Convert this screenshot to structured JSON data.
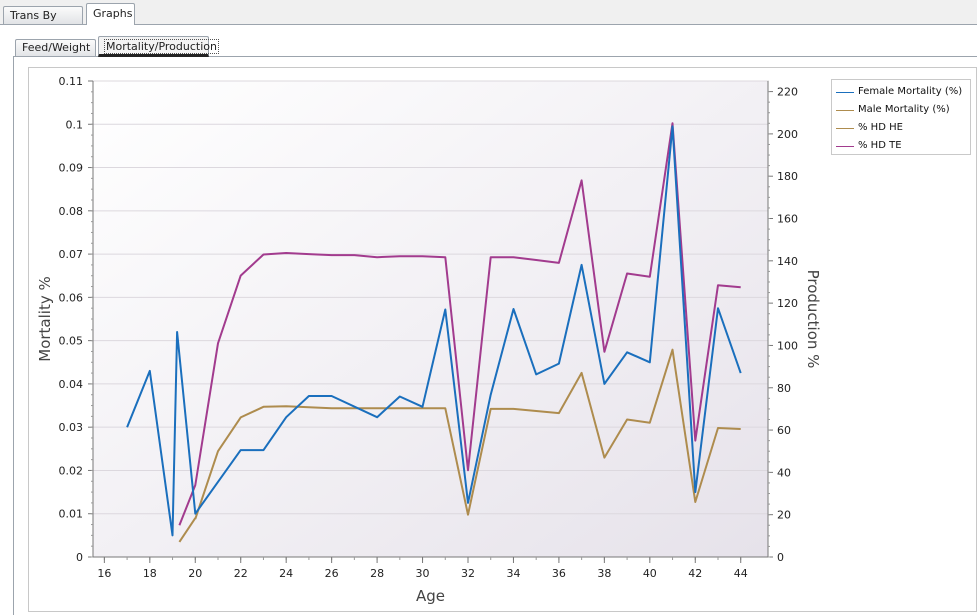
{
  "tabs": [
    {
      "label": "Trans By Age",
      "active": false
    },
    {
      "label": "Graphs",
      "active": true
    }
  ],
  "subtabs": [
    {
      "label": "Feed/Weight",
      "active": false
    },
    {
      "label": "Mortality/Production",
      "active": true
    }
  ],
  "colors": {
    "female_mortality": "#1a6fbd",
    "male_mortality": "#ae8c4e",
    "hd_he": "#ae8c4e",
    "hd_te": "#a23b8e",
    "plot_bg_start": "#ffffff",
    "plot_bg_end": "#e6e2ea"
  },
  "chart_data": {
    "type": "line",
    "xlabel": "Age",
    "ylabel": "Mortality %",
    "y2label": "Production %",
    "xlim": [
      15.5,
      45.2
    ],
    "ylim": [
      0,
      0.11
    ],
    "y2lim": [
      0,
      225
    ],
    "x_ticks": [
      16,
      18,
      20,
      22,
      24,
      26,
      28,
      30,
      32,
      34,
      36,
      38,
      40,
      42,
      44
    ],
    "y_ticks": [
      0,
      0.01,
      0.02,
      0.03,
      0.04,
      0.05,
      0.06,
      0.07,
      0.08,
      0.09,
      0.1,
      0.11
    ],
    "y2_ticks": [
      0,
      20,
      40,
      60,
      80,
      100,
      120,
      140,
      160,
      180,
      200,
      220
    ],
    "grid": "horizontal",
    "legend_position": "top-right",
    "series": [
      {
        "name": "Female Mortality (%)",
        "axis": "left",
        "color_key": "female_mortality",
        "x": [
          17,
          18,
          19,
          19.2,
          20,
          22,
          23,
          24,
          25,
          26,
          28,
          29,
          30,
          31,
          32,
          33,
          34,
          35,
          36,
          37,
          38,
          39,
          40,
          41,
          42,
          43,
          44
        ],
        "y": [
          0.03,
          0.043,
          0.005,
          0.052,
          0.01,
          0.0247,
          0.0247,
          0.0323,
          0.0372,
          0.0372,
          0.0323,
          0.0371,
          0.0347,
          0.0572,
          0.0125,
          0.0375,
          0.0573,
          0.0422,
          0.0447,
          0.0675,
          0.04,
          0.0473,
          0.045,
          0.0995,
          0.015,
          0.0575,
          0.0425
        ]
      },
      {
        "name": "Male Mortality (%)",
        "axis": "left",
        "color_key": "male_mortality",
        "x": [
          19.3,
          20
        ],
        "y": [
          0.0035,
          0.009
        ]
      },
      {
        "name": "% HD HE",
        "axis": "right",
        "color_key": "hd_he",
        "x": [
          20,
          21,
          22,
          23,
          24,
          25,
          26,
          27,
          28,
          29,
          30,
          31,
          32,
          33,
          34,
          35,
          36,
          37,
          38,
          39,
          40,
          41,
          42,
          43,
          44
        ],
        "y": [
          18,
          50,
          66,
          71,
          71.3,
          70.8,
          70.3,
          70.3,
          70.3,
          70.3,
          70.3,
          70.3,
          20,
          70,
          70,
          69,
          68,
          87,
          47,
          65,
          63.5,
          98,
          26,
          61,
          60.5
        ]
      },
      {
        "name": "% HD TE",
        "axis": "right",
        "color_key": "hd_te",
        "x": [
          19.3,
          20,
          21,
          22,
          23,
          24,
          25,
          26,
          27,
          28,
          29,
          30,
          31,
          32,
          33,
          34,
          35,
          36,
          37,
          38,
          39,
          40,
          41,
          42,
          43,
          44
        ],
        "y": [
          15,
          34,
          101,
          133,
          143,
          143.7,
          143.2,
          142.7,
          142.7,
          141.7,
          142.2,
          142.2,
          141.7,
          41,
          141.7,
          141.7,
          140.4,
          139,
          178,
          97,
          134,
          132.5,
          205,
          55,
          128.5,
          127.5
        ]
      }
    ]
  }
}
